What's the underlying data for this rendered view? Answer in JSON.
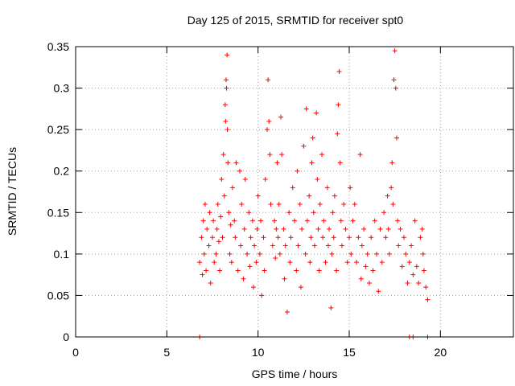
{
  "chart_data": {
    "type": "scatter",
    "title": "Day 125 of 2015, SRMTID for receiver spt0",
    "xlabel": "GPS time / hours",
    "ylabel": "SRMTID / TECUs",
    "xlim": [
      0,
      24
    ],
    "ylim": [
      0,
      0.35
    ],
    "xticks": [
      0,
      5,
      10,
      15,
      20
    ],
    "xtick_labels": [
      "0",
      "5",
      "10",
      "15",
      "20"
    ],
    "yticks": [
      0,
      0.05,
      0.1,
      0.15,
      0.2,
      0.25,
      0.3,
      0.35
    ],
    "ytick_labels": [
      "0",
      "0.05",
      "0.1",
      "0.15",
      "0.2",
      "0.25",
      "0.3",
      "0.35"
    ],
    "grid": true,
    "legend": "none",
    "marker": "+",
    "color": "#ff0000",
    "series": [
      {
        "name": "SRMTID",
        "points": [
          [
            6.8,
            0.09
          ],
          [
            6.9,
            0.12
          ],
          [
            6.95,
            0.075
          ],
          [
            7.0,
            0.14
          ],
          [
            7.05,
            0.1
          ],
          [
            7.1,
            0.16
          ],
          [
            7.15,
            0.08
          ],
          [
            7.2,
            0.13
          ],
          [
            7.3,
            0.11
          ],
          [
            7.35,
            0.15
          ],
          [
            7.4,
            0.065
          ],
          [
            7.5,
            0.12
          ],
          [
            7.55,
            0.14
          ],
          [
            7.6,
            0.09
          ],
          [
            7.7,
            0.1
          ],
          [
            7.75,
            0.13
          ],
          [
            7.8,
            0.16
          ],
          [
            7.85,
            0.115
          ],
          [
            7.9,
            0.08
          ],
          [
            7.95,
            0.145
          ],
          [
            8.0,
            0.19
          ],
          [
            8.05,
            0.12
          ],
          [
            8.1,
            0.22
          ],
          [
            8.15,
            0.17
          ],
          [
            8.2,
            0.28
          ],
          [
            8.22,
            0.26
          ],
          [
            8.25,
            0.31
          ],
          [
            8.27,
            0.3
          ],
          [
            8.3,
            0.34
          ],
          [
            8.32,
            0.25
          ],
          [
            8.35,
            0.21
          ],
          [
            8.4,
            0.15
          ],
          [
            8.45,
            0.1
          ],
          [
            8.5,
            0.135
          ],
          [
            8.55,
            0.09
          ],
          [
            8.6,
            0.18
          ],
          [
            8.7,
            0.14
          ],
          [
            8.75,
            0.12
          ],
          [
            8.8,
            0.21
          ],
          [
            8.9,
            0.08
          ],
          [
            9.0,
            0.2
          ],
          [
            9.05,
            0.11
          ],
          [
            9.1,
            0.16
          ],
          [
            9.2,
            0.07
          ],
          [
            9.25,
            0.13
          ],
          [
            9.3,
            0.19
          ],
          [
            9.4,
            0.1
          ],
          [
            9.5,
            0.15
          ],
          [
            9.55,
            0.085
          ],
          [
            9.6,
            0.12
          ],
          [
            9.7,
            0.14
          ],
          [
            9.75,
            0.06
          ],
          [
            9.8,
            0.11
          ],
          [
            9.9,
            0.09
          ],
          [
            9.95,
            0.13
          ],
          [
            10.0,
            0.17
          ],
          [
            10.1,
            0.1
          ],
          [
            10.15,
            0.14
          ],
          [
            10.2,
            0.05
          ],
          [
            10.3,
            0.12
          ],
          [
            10.35,
            0.08
          ],
          [
            10.4,
            0.19
          ],
          [
            10.5,
            0.25
          ],
          [
            10.55,
            0.31
          ],
          [
            10.6,
            0.26
          ],
          [
            10.65,
            0.22
          ],
          [
            10.7,
            0.16
          ],
          [
            10.8,
            0.11
          ],
          [
            10.9,
            0.14
          ],
          [
            10.95,
            0.095
          ],
          [
            11.0,
            0.13
          ],
          [
            11.05,
            0.21
          ],
          [
            11.1,
            0.12
          ],
          [
            11.15,
            0.16
          ],
          [
            11.2,
            0.1
          ],
          [
            11.25,
            0.265
          ],
          [
            11.3,
            0.22
          ],
          [
            11.4,
            0.13
          ],
          [
            11.45,
            0.07
          ],
          [
            11.5,
            0.11
          ],
          [
            11.6,
            0.03
          ],
          [
            11.7,
            0.15
          ],
          [
            11.75,
            0.09
          ],
          [
            11.8,
            0.12
          ],
          [
            11.9,
            0.18
          ],
          [
            12.0,
            0.14
          ],
          [
            12.1,
            0.08
          ],
          [
            12.15,
            0.2
          ],
          [
            12.2,
            0.11
          ],
          [
            12.3,
            0.16
          ],
          [
            12.35,
            0.06
          ],
          [
            12.4,
            0.13
          ],
          [
            12.5,
            0.23
          ],
          [
            12.6,
            0.1
          ],
          [
            12.65,
            0.275
          ],
          [
            12.7,
            0.14
          ],
          [
            12.8,
            0.17
          ],
          [
            12.85,
            0.09
          ],
          [
            12.9,
            0.12
          ],
          [
            12.95,
            0.21
          ],
          [
            13.0,
            0.24
          ],
          [
            13.05,
            0.15
          ],
          [
            13.1,
            0.11
          ],
          [
            13.2,
            0.27
          ],
          [
            13.25,
            0.19
          ],
          [
            13.3,
            0.13
          ],
          [
            13.35,
            0.08
          ],
          [
            13.4,
            0.16
          ],
          [
            13.5,
            0.22
          ],
          [
            13.55,
            0.12
          ],
          [
            13.6,
            0.14
          ],
          [
            13.7,
            0.09
          ],
          [
            13.8,
            0.18
          ],
          [
            13.85,
            0.11
          ],
          [
            13.9,
            0.13
          ],
          [
            14.0,
            0.035
          ],
          [
            14.05,
            0.1
          ],
          [
            14.1,
            0.15
          ],
          [
            14.15,
            0.12
          ],
          [
            14.2,
            0.17
          ],
          [
            14.3,
            0.08
          ],
          [
            14.35,
            0.245
          ],
          [
            14.4,
            0.28
          ],
          [
            14.45,
            0.32
          ],
          [
            14.5,
            0.21
          ],
          [
            14.55,
            0.14
          ],
          [
            14.6,
            0.11
          ],
          [
            14.7,
            0.16
          ],
          [
            14.8,
            0.13
          ],
          [
            14.9,
            0.09
          ],
          [
            15.0,
            0.12
          ],
          [
            15.05,
            0.18
          ],
          [
            15.1,
            0.1
          ],
          [
            15.2,
            0.14
          ],
          [
            15.3,
            0.16
          ],
          [
            15.4,
            0.09
          ],
          [
            15.5,
            0.12
          ],
          [
            15.6,
            0.22
          ],
          [
            15.65,
            0.07
          ],
          [
            15.7,
            0.11
          ],
          [
            15.8,
            0.13
          ],
          [
            15.9,
            0.085
          ],
          [
            16.0,
            0.1
          ],
          [
            16.1,
            0.065
          ],
          [
            16.2,
            0.12
          ],
          [
            16.3,
            0.08
          ],
          [
            16.4,
            0.14
          ],
          [
            16.5,
            0.1
          ],
          [
            16.6,
            0.055
          ],
          [
            16.7,
            0.13
          ],
          [
            16.8,
            0.09
          ],
          [
            16.9,
            0.15
          ],
          [
            17.0,
            0.12
          ],
          [
            17.1,
            0.17
          ],
          [
            17.15,
            0.13
          ],
          [
            17.2,
            0.1
          ],
          [
            17.3,
            0.18
          ],
          [
            17.35,
            0.21
          ],
          [
            17.4,
            0.16
          ],
          [
            17.45,
            0.31
          ],
          [
            17.5,
            0.345
          ],
          [
            17.55,
            0.3
          ],
          [
            17.6,
            0.24
          ],
          [
            17.65,
            0.14
          ],
          [
            17.7,
            0.11
          ],
          [
            17.8,
            0.13
          ],
          [
            17.9,
            0.085
          ],
          [
            18.0,
            0.12
          ],
          [
            18.1,
            0.1
          ],
          [
            18.2,
            0.065
          ],
          [
            18.3,
            0.09
          ],
          [
            18.4,
            0.11
          ],
          [
            18.5,
            0.075
          ],
          [
            18.6,
            0.14
          ],
          [
            18.7,
            0.085
          ],
          [
            18.8,
            0.065
          ],
          [
            18.9,
            0.12
          ],
          [
            19.0,
            0.13
          ],
          [
            19.05,
            0.1
          ],
          [
            19.1,
            0.08
          ],
          [
            19.2,
            0.06
          ],
          [
            19.3,
            0.045
          ],
          [
            6.8,
            0.0
          ],
          [
            18.3,
            0.0
          ],
          [
            18.5,
            0.0
          ],
          [
            19.3,
            0.0
          ]
        ]
      }
    ]
  }
}
